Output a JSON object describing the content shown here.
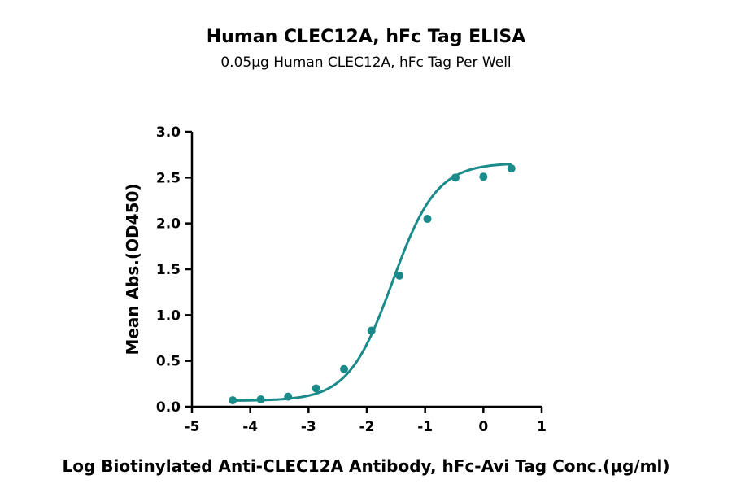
{
  "chart_data": {
    "type": "scatter",
    "title": "Human CLEC12A, hFc Tag ELISA",
    "subtitle": "0.05μg Human CLEC12A, hFc Tag Per Well",
    "xlabel": "Log Biotinylated Anti-CLEC12A Antibody, hFc-Avi Tag Conc.(μg/ml)",
    "ylabel": "Mean Abs.(OD450)",
    "xlim": [
      -5,
      1
    ],
    "ylim": [
      0,
      3
    ],
    "x_ticks": [
      -5,
      -4,
      -3,
      -2,
      -1,
      0,
      1
    ],
    "y_ticks": [
      0.0,
      0.5,
      1.0,
      1.5,
      2.0,
      2.5,
      3.0
    ],
    "x_tick_labels": [
      "-5",
      "-4",
      "-3",
      "-2",
      "-1",
      "0",
      "1"
    ],
    "y_tick_labels": [
      "0.0",
      "0.5",
      "1.0",
      "1.5",
      "2.0",
      "2.5",
      "3.0"
    ],
    "grid": false,
    "color": "#1a8a8a",
    "series": [
      {
        "points": [
          {
            "x": -4.3,
            "y": 0.07
          },
          {
            "x": -3.82,
            "y": 0.08
          },
          {
            "x": -3.35,
            "y": 0.11
          },
          {
            "x": -2.87,
            "y": 0.2
          },
          {
            "x": -2.39,
            "y": 0.41
          },
          {
            "x": -1.92,
            "y": 0.83
          },
          {
            "x": -1.44,
            "y": 1.43
          },
          {
            "x": -0.96,
            "y": 2.05
          },
          {
            "x": -0.48,
            "y": 2.5
          },
          {
            "x": 0.0,
            "y": 2.51
          },
          {
            "x": 0.48,
            "y": 2.6
          }
        ],
        "fit": {
          "bottom": 0.065,
          "top": 2.66,
          "logEC50": -1.56,
          "hill": 1.15
        }
      }
    ]
  }
}
